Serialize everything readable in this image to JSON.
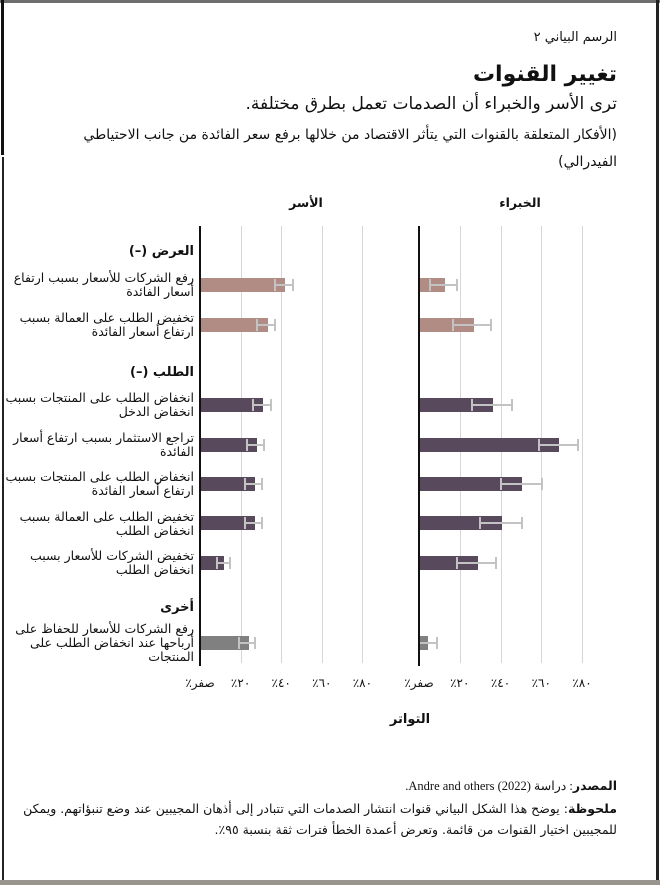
{
  "header": {
    "figure_label": "الرسم البياني ٢",
    "title": "تغيير القنوات",
    "subtitle": "ترى الأسر والخبراء أن الصدمات تعمل بطرق مختلفة.",
    "description": "(الأفكار المتعلقة بالقنوات التي يتأثر الاقتصاد من خلالها برفع سعر الفائدة من جانب الاحتياطي الفيدرالي)"
  },
  "categories": {
    "supply": "العرض (–)",
    "demand": "الطلب (–)",
    "other": "أخرى"
  },
  "labels": [
    "رفع الشركات للأسعار بسبب ارتفاع أسعار الفائدة",
    "تخفيض الطلب على العمالة بسبب ارتفاع أسعار الفائدة",
    "انخفاض الطلب على المنتجات بسبب انخفاض الدخل",
    "تراجع الاستثمار بسبب ارتفاع أسعار الفائدة",
    "انخفاض الطلب على المنتجات بسبب ارتفاع أسعار الفائدة",
    "تخفيض الطلب على العمالة بسبب انخفاض الطلب",
    "تخفيض الشركات للأسعار بسبب انخفاض الطلب",
    "رفع الشركات للأسعار للحفاظ على أرباحها عند انخفاض الطلب على المنتجات"
  ],
  "panels": {
    "households": "الأسر",
    "experts": "الخبراء"
  },
  "axis": {
    "ticks": [
      "صفر٪",
      "٢٠٪",
      "٤٠٪",
      "٦٠٪",
      "٨٠٪"
    ],
    "xlabel": "التواتر"
  },
  "footer": {
    "source_label": "المصدر",
    "source_text": ": دراسة Andre and others (2022).",
    "note_label": "ملحوظة",
    "note_text": ": يوضح هذا الشكل البياني قنوات انتشار الصدمات التي تتبادر إلى أذهان المجيبين عند وضع تنبؤاتهم. ويمكن للمجيبين اختيار القنوات من قائمة. وتعرض أعمدة الخطأ فترات ثقة بنسبة ٩٥٪."
  },
  "colors": {
    "supply": "#b08c84",
    "demand": "#584a5c",
    "other": "#808080",
    "error_bar": "#c3c3c3",
    "grid": "#d6d6d6"
  },
  "chart_data": {
    "type": "bar",
    "orientation": "horizontal",
    "title": "تغيير القنوات",
    "subtitle": "ترى الأسر والخبراء أن الصدمات تعمل بطرق مختلفة.",
    "xlabel": "التواتر",
    "ylabel": "",
    "xlim": [
      0,
      80
    ],
    "x_ticks": [
      "صفر٪",
      "٢٠٪",
      "٤٠٪",
      "٦٠٪",
      "٨٠٪"
    ],
    "grid": true,
    "groups": [
      {
        "name": "العرض (–)",
        "members": [
          0,
          1
        ]
      },
      {
        "name": "الطلب (–)",
        "members": [
          2,
          3,
          4,
          5,
          6
        ]
      },
      {
        "name": "أخرى",
        "members": [
          7
        ]
      }
    ],
    "categories": [
      "رفع الشركات للأسعار بسبب ارتفاع أسعار الفائدة",
      "تخفيض الطلب على العمالة بسبب ارتفاع أسعار الفائدة",
      "انخفاض الطلب على المنتجات بسبب انخفاض الدخل",
      "تراجع الاستثمار بسبب ارتفاع أسعار الفائدة",
      "انخفاض الطلب على المنتجات بسبب ارتفاع أسعار الفائدة",
      "تخفيض الطلب على العمالة بسبب انخفاض الطلب",
      "تخفيض الشركات للأسعار بسبب انخفاض الطلب",
      "رفع الشركات للأسعار للحفاظ على أرباحها عند انخفاض الطلب على المنتجات"
    ],
    "series": [
      {
        "name": "الأسر",
        "values": [
          41.5,
          33,
          30.5,
          27.5,
          26.5,
          26.5,
          11.5,
          23.5
        ],
        "ci_low": [
          37,
          28,
          26,
          23,
          22,
          22,
          8.5,
          19
        ],
        "ci_high": [
          46,
          37,
          35,
          31.5,
          30.5,
          30.5,
          15,
          27
        ]
      },
      {
        "name": "الخبراء",
        "values": [
          12.5,
          26.5,
          36,
          68,
          50,
          40,
          28.5,
          4
        ],
        "ci_low": [
          5.5,
          16.5,
          26,
          59,
          40,
          30,
          18.5,
          0
        ],
        "ci_high": [
          18.5,
          35.5,
          45.5,
          78,
          60.5,
          50.5,
          38,
          9
        ]
      }
    ],
    "error_bars": "95% confidence intervals",
    "source": "Andre and others (2022)"
  }
}
